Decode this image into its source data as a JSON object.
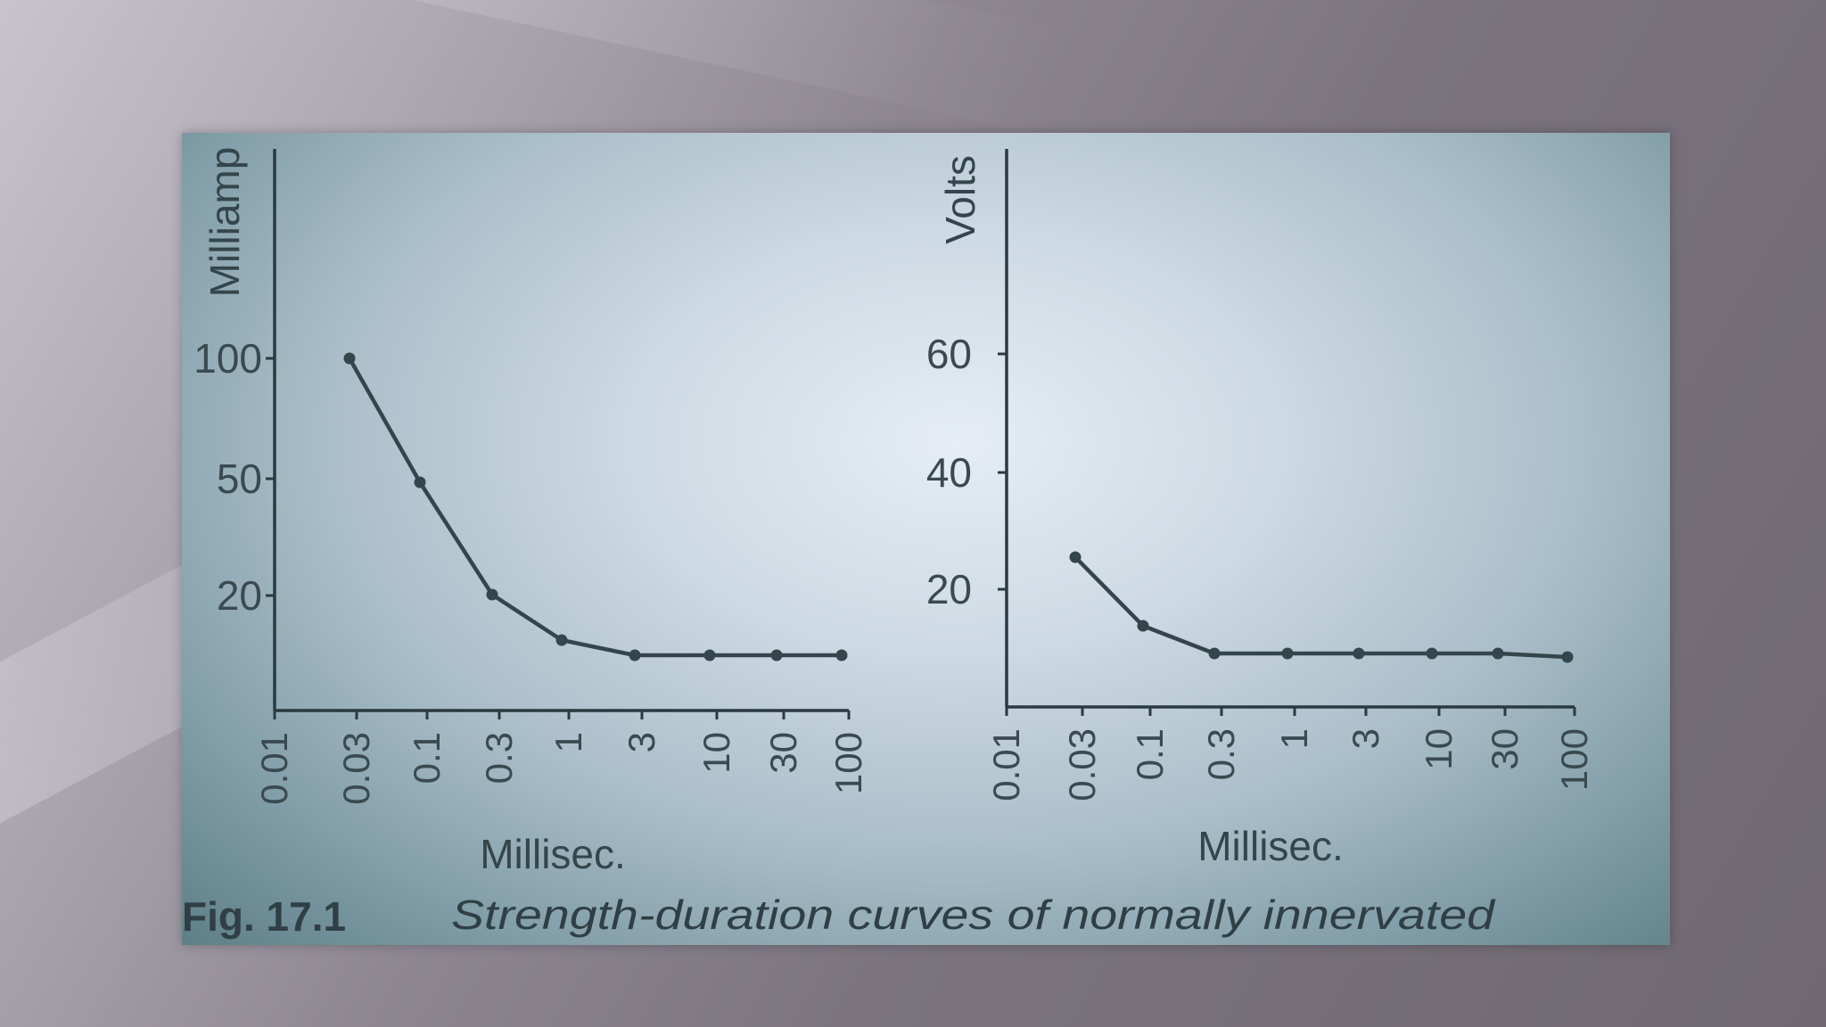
{
  "caption": {
    "figure_number": "Fig. 17.1",
    "text": "Strength-duration curves of normally innervated"
  },
  "chart_data": [
    {
      "type": "line",
      "ylabel": "Milliamp",
      "xlabel": "Millisec.",
      "x_tick_labels": [
        "0.01",
        "0.03",
        "0.1",
        "0.3",
        "1",
        "3",
        "10",
        "30",
        "100"
      ],
      "y_tick_labels": [
        "100",
        "50",
        "20"
      ],
      "series": [
        {
          "x": [
            "0.03",
            "0.1",
            "0.3",
            "1",
            "3",
            "10",
            "30",
            "100"
          ],
          "y": [
            100,
            48,
            20,
            12,
            10,
            10,
            10,
            10
          ]
        }
      ]
    },
    {
      "type": "line",
      "ylabel": "Volts",
      "xlabel": "Millisec.",
      "x_tick_labels": [
        "0.01",
        "0.03",
        "0.1",
        "0.3",
        "1",
        "3",
        "10",
        "30",
        "100"
      ],
      "y_tick_labels": [
        "60",
        "40",
        "20"
      ],
      "series": [
        {
          "x": [
            "0.03",
            "0.1",
            "0.3",
            "1",
            "3",
            "10",
            "30",
            "100"
          ],
          "y": [
            26,
            14,
            9,
            9,
            9,
            9,
            9,
            8.5
          ]
        }
      ]
    }
  ]
}
